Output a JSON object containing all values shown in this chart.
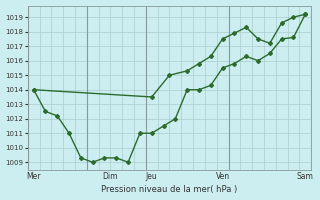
{
  "xlabel": "Pression niveau de la mer( hPa )",
  "bg_color": "#cceef0",
  "grid_color": "#aacccc",
  "line_color": "#2d6a2d",
  "ylim": [
    1008.5,
    1019.8
  ],
  "xlim": [
    0,
    24
  ],
  "yticks": [
    1009,
    1010,
    1011,
    1012,
    1013,
    1014,
    1015,
    1016,
    1017,
    1018,
    1019
  ],
  "xtick_labels": [
    "Mer",
    "Dim",
    "Jeu",
    "Ven",
    "Sam"
  ],
  "xtick_positions": [
    0.5,
    7,
    10.5,
    16.5,
    23.5
  ],
  "vline_positions": [
    0,
    5,
    10,
    17,
    24
  ],
  "line1_x": [
    0.5,
    1.5,
    2.5,
    3.5,
    4.5,
    5.5,
    6.5,
    7.5,
    8.5,
    9.5,
    10.5,
    11.5,
    12.5,
    13.5,
    14.5,
    15.5,
    16.5,
    17.5,
    18.5,
    19.5,
    20.5,
    21.5,
    22.5,
    23.5
  ],
  "line1_y": [
    1014.0,
    1012.5,
    1012.2,
    1011.0,
    1009.3,
    1009.0,
    1009.3,
    1009.3,
    1009.0,
    1011.0,
    1011.0,
    1011.5,
    1012.0,
    1014.0,
    1014.0,
    1014.3,
    1015.5,
    1015.8,
    1016.3,
    1016.0,
    1016.5,
    1017.5,
    1017.6,
    1019.2
  ],
  "line2_x": [
    0.5,
    10.5,
    12.0,
    13.5,
    14.5,
    15.5,
    16.5,
    17.5,
    18.5,
    19.5,
    20.5,
    21.5,
    22.5,
    23.5
  ],
  "line2_y": [
    1014.0,
    1013.5,
    1015.0,
    1015.3,
    1015.8,
    1016.3,
    1017.5,
    1017.9,
    1018.3,
    1017.5,
    1017.2,
    1018.6,
    1019.0,
    1019.2
  ],
  "marker": "D",
  "markersize": 2.0,
  "linewidth": 1.0
}
